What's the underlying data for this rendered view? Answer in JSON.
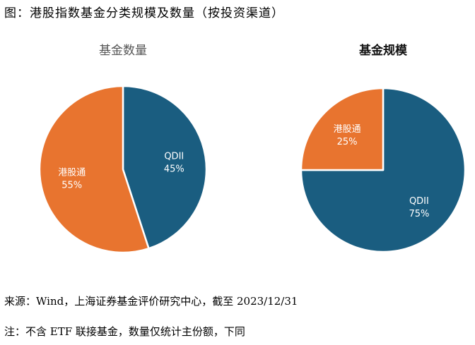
{
  "figure": {
    "title": "图：港股指数基金分类规模及数量（按投资渠道）",
    "source": "来源：Wind，上海证券基金评价研究中心，截至 2023/12/31",
    "note": "注：不含 ETF 联接基金，数量仅统计主份额，下同"
  },
  "colors": {
    "qdii": "#1a5d80",
    "connect": "#e8742f",
    "title_left": "#555555",
    "title_right": "#111111"
  },
  "chart_data": [
    {
      "type": "pie",
      "title": "基金数量",
      "start_angle_deg": 0,
      "series": [
        {
          "name": "QDII",
          "value": 45,
          "label": "45%",
          "color": "#1a5d80",
          "label_color": "#ffffff"
        },
        {
          "name": "港股通",
          "value": 55,
          "label": "55%",
          "color": "#e8742f",
          "label_color": "#ffffff"
        }
      ]
    },
    {
      "type": "pie",
      "title": "基金规模",
      "start_angle_deg": 0,
      "series": [
        {
          "name": "QDII",
          "value": 75,
          "label": "75%",
          "color": "#1a5d80",
          "label_color": "#ffffff"
        },
        {
          "name": "港股通",
          "value": 25,
          "label": "25%",
          "color": "#e8742f",
          "label_color": "#ffffff"
        }
      ]
    }
  ]
}
